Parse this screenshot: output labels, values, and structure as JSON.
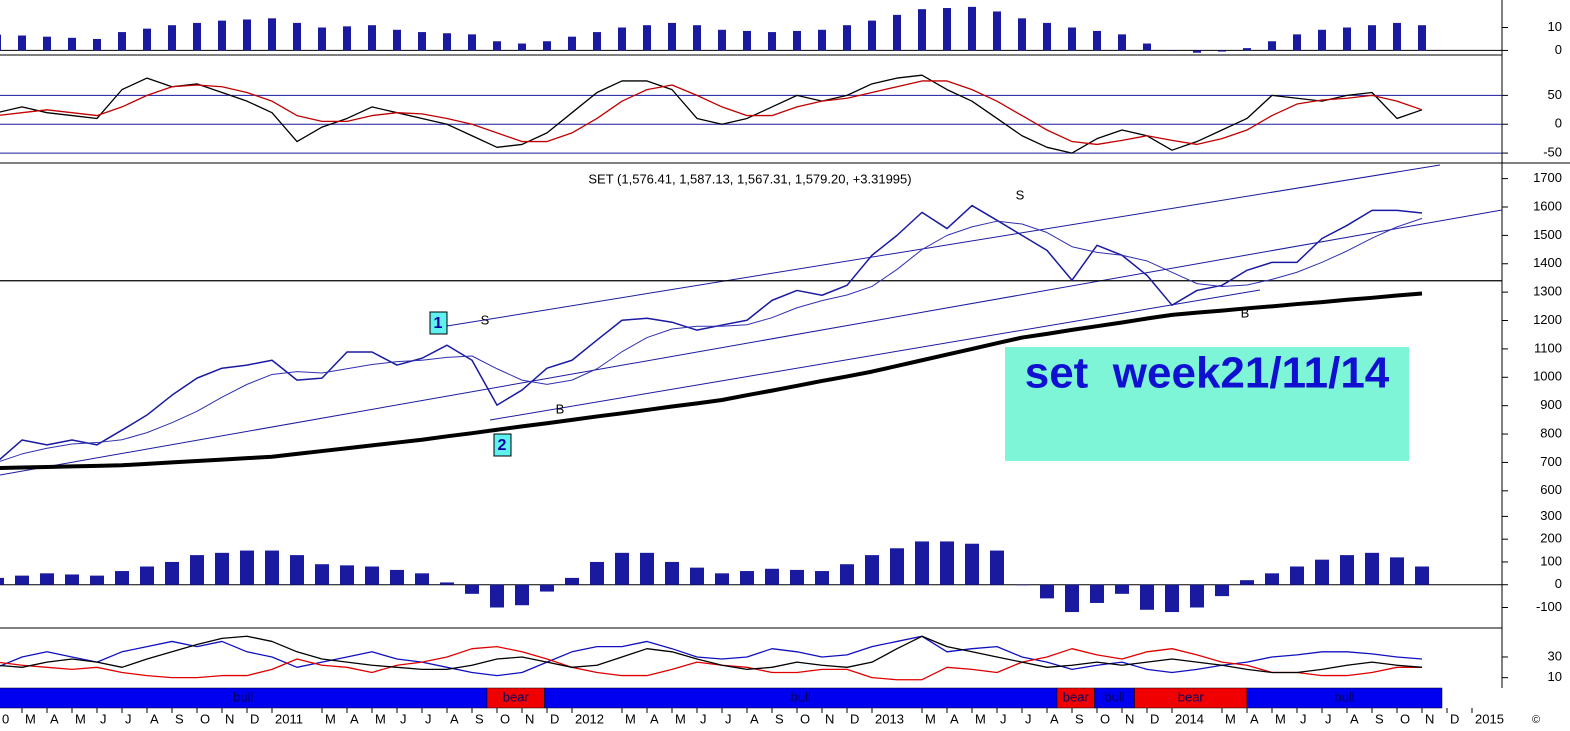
{
  "x_axis": {
    "categories": [
      "0",
      null,
      "M",
      "A",
      "M",
      "J",
      "J",
      "A",
      "S",
      "O",
      "N",
      "D",
      "2011",
      null,
      "M",
      "A",
      "M",
      "J",
      "J",
      "A",
      "S",
      "O",
      "N",
      "D",
      "2012",
      null,
      "M",
      "A",
      "M",
      "J",
      "J",
      "A",
      "S",
      "O",
      "N",
      "D",
      "2013",
      null,
      "M",
      "A",
      "M",
      "J",
      "J",
      "A",
      "S",
      "O",
      "N",
      "D",
      "2014",
      null,
      "M",
      "A",
      "M",
      "J",
      "J",
      "A",
      "S",
      "O",
      "N",
      "D",
      "2015"
    ]
  },
  "chart_data": [
    {
      "type": "bar",
      "color": "#1a1aa0",
      "ylim": [
        -2,
        22
      ],
      "yticks": [
        10,
        0
      ],
      "values": [
        null,
        6.9,
        6.5,
        6,
        5.5,
        5,
        8,
        9.5,
        11,
        12,
        13,
        13.5,
        14,
        12,
        10,
        10.5,
        11,
        9,
        8,
        7.5,
        7,
        4,
        3,
        4,
        6,
        8,
        10,
        11,
        12,
        11,
        9,
        8.5,
        8,
        8.5,
        9,
        11,
        13,
        15.5,
        18,
        18.5,
        19,
        17,
        14,
        12,
        10,
        8.5,
        7,
        3,
        0,
        -1,
        -0.5,
        1,
        4,
        7,
        9,
        10,
        11,
        12,
        11,
        null,
        null
      ]
    },
    {
      "type": "line",
      "ylim": [
        -62,
        120
      ],
      "yticks": [
        50,
        0,
        -50
      ],
      "grid": true,
      "series": [
        {
          "color": "#000000",
          "values": [
            null,
            20,
            30,
            20,
            15,
            10,
            60,
            80,
            65,
            70,
            55,
            40,
            20,
            -30,
            -5,
            10,
            30,
            20,
            10,
            0,
            -20,
            -40,
            -35,
            -15,
            20,
            55,
            75,
            75,
            60,
            10,
            0,
            10,
            30,
            50,
            40,
            50,
            70,
            80,
            85,
            60,
            40,
            10,
            -20,
            -40,
            -50,
            -25,
            -10,
            -20,
            -45,
            -30,
            -10,
            10,
            50,
            45,
            40,
            50,
            55,
            10,
            25,
            null,
            null
          ]
        },
        {
          "color": "#c00000",
          "values": [
            null,
            15,
            20,
            25,
            20,
            15,
            30,
            50,
            65,
            68,
            65,
            55,
            40,
            15,
            5,
            5,
            15,
            20,
            18,
            10,
            0,
            -15,
            -30,
            -30,
            -15,
            10,
            40,
            60,
            68,
            50,
            30,
            15,
            15,
            30,
            40,
            45,
            55,
            65,
            75,
            75,
            60,
            40,
            15,
            -10,
            -30,
            -35,
            -28,
            -20,
            -28,
            -35,
            -25,
            -10,
            15,
            35,
            42,
            45,
            50,
            40,
            25,
            null,
            null
          ]
        }
      ]
    },
    {
      "type": "line",
      "title": "SET (1,576.41, 1,587.13, 1,567.31, 1,579.20, +3.31995)",
      "ylim": [
        550,
        1755
      ],
      "yticks": [
        600,
        700,
        800,
        900,
        1000,
        1100,
        1200,
        1300,
        1400,
        1500,
        1600,
        1700
      ],
      "reference_line": 1340,
      "annotations": [
        "1",
        "2",
        "S",
        "S",
        "B",
        "B"
      ],
      "note": "set  week21/11/14",
      "series": [
        {
          "color": "#1a1aa0",
          "width": 1.5,
          "values": [
            null,
            702,
            779,
            762,
            779,
            762,
            814,
            867,
            937,
            997,
            1032,
            1043,
            1060,
            990,
            997,
            1089,
            1089,
            1043,
            1067,
            1113,
            1060,
            902,
            955,
            1032,
            1060,
            1131,
            1201,
            1208,
            1194,
            1166,
            1184,
            1201,
            1271,
            1306,
            1289,
            1324,
            1430,
            1500,
            1581,
            1524,
            1605,
            1553,
            1500,
            1447,
            1342,
            1465,
            1430,
            1359,
            1254,
            1306,
            1324,
            1377,
            1405,
            1405,
            1489,
            1535,
            1588,
            1588,
            1579,
            null,
            null
          ]
        },
        {
          "color": "#3030b0",
          "width": 1,
          "values": [
            null,
            700,
            730,
            750,
            765,
            770,
            780,
            805,
            840,
            880,
            930,
            975,
            1010,
            1020,
            1015,
            1030,
            1045,
            1055,
            1060,
            1070,
            1075,
            1030,
            990,
            975,
            990,
            1030,
            1090,
            1140,
            1170,
            1180,
            1180,
            1185,
            1210,
            1245,
            1270,
            1290,
            1320,
            1380,
            1450,
            1500,
            1530,
            1550,
            1540,
            1510,
            1460,
            1440,
            1430,
            1410,
            1370,
            1330,
            1320,
            1325,
            1345,
            1370,
            1405,
            1445,
            1490,
            1530,
            1560,
            null,
            null
          ]
        },
        {
          "color": "#000000",
          "width": 4,
          "values": [
            null,
            680,
            682,
            684,
            686,
            688,
            690,
            695,
            700,
            705,
            710,
            715,
            720,
            730,
            740,
            750,
            760,
            770,
            780,
            792,
            803,
            815,
            827,
            838,
            850,
            862,
            873,
            885,
            897,
            908,
            920,
            937,
            953,
            970,
            987,
            1003,
            1020,
            1040,
            1060,
            1080,
            1100,
            1120,
            1140,
            1153,
            1167,
            1180,
            1193,
            1207,
            1220,
            1228,
            1235,
            1243,
            1250,
            1258,
            1265,
            1273,
            1280,
            1288,
            1295,
            null,
            null
          ]
        }
      ]
    },
    {
      "type": "bar",
      "color": "#1a1aa0",
      "ylim": [
        -190,
        350
      ],
      "yticks": [
        300,
        200,
        100,
        0,
        -100
      ],
      "values": [
        null,
        30,
        40,
        50,
        45,
        40,
        60,
        80,
        100,
        130,
        140,
        150,
        150,
        130,
        90,
        85,
        80,
        65,
        50,
        10,
        -40,
        -100,
        -90,
        -30,
        30,
        100,
        140,
        140,
        100,
        75,
        50,
        60,
        70,
        65,
        60,
        90,
        130,
        160,
        190,
        190,
        180,
        150,
        0,
        -60,
        -120,
        -80,
        -40,
        -110,
        -120,
        -100,
        -50,
        20,
        50,
        80,
        110,
        130,
        140,
        120,
        80,
        null,
        null
      ]
    },
    {
      "type": "line",
      "ylim": [
        0,
        58
      ],
      "yticks": [
        30,
        10
      ],
      "series": [
        {
          "color": "#1010c0",
          "values": [
            null,
            20,
            30,
            35,
            30,
            25,
            35,
            40,
            45,
            40,
            45,
            35,
            30,
            20,
            25,
            30,
            35,
            28,
            25,
            20,
            15,
            12,
            15,
            25,
            35,
            40,
            40,
            45,
            38,
            30,
            28,
            30,
            38,
            35,
            30,
            32,
            40,
            45,
            50,
            35,
            38,
            40,
            30,
            25,
            18,
            22,
            25,
            18,
            15,
            18,
            22,
            25,
            30,
            32,
            35,
            35,
            33,
            30,
            28,
            null,
            null
          ]
        },
        {
          "color": "#e00000",
          "values": [
            null,
            25,
            22,
            20,
            18,
            20,
            15,
            12,
            10,
            10,
            12,
            12,
            18,
            28,
            22,
            20,
            15,
            22,
            25,
            30,
            38,
            40,
            35,
            28,
            20,
            15,
            12,
            12,
            18,
            25,
            22,
            20,
            15,
            15,
            18,
            18,
            10,
            8,
            8,
            20,
            18,
            15,
            25,
            30,
            38,
            32,
            28,
            35,
            38,
            32,
            25,
            22,
            15,
            15,
            12,
            12,
            15,
            20,
            20,
            null,
            null
          ]
        },
        {
          "color": "#000000",
          "values": [
            null,
            22,
            20,
            25,
            28,
            25,
            20,
            28,
            35,
            42,
            48,
            50,
            45,
            35,
            28,
            25,
            22,
            20,
            18,
            18,
            22,
            28,
            30,
            25,
            20,
            22,
            30,
            38,
            35,
            28,
            22,
            18,
            20,
            25,
            22,
            20,
            25,
            38,
            50,
            40,
            35,
            30,
            25,
            20,
            22,
            25,
            22,
            25,
            28,
            25,
            22,
            18,
            15,
            15,
            18,
            22,
            25,
            22,
            20,
            null,
            null
          ]
        }
      ]
    }
  ],
  "signal_bar": {
    "segments": [
      {
        "label": "bull",
        "color": "#0000f0",
        "start": 1.1,
        "end": 20.6
      },
      {
        "label": "bear",
        "color": "#f00000",
        "start": 20.6,
        "end": 22.9
      },
      {
        "label": "bull",
        "color": "#0000f0",
        "start": 22.9,
        "end": 43.4
      },
      {
        "label": "bear",
        "color": "#f00000",
        "start": 43.4,
        "end": 44.9
      },
      {
        "label": "bull",
        "color": "#0000f0",
        "start": 44.9,
        "end": 46.5
      },
      {
        "label": "bear",
        "color": "#f00000",
        "start": 46.5,
        "end": 51
      },
      {
        "label": "bull",
        "color": "#0000f0",
        "start": 51,
        "end": 58.8
      }
    ]
  },
  "copyright": "©"
}
